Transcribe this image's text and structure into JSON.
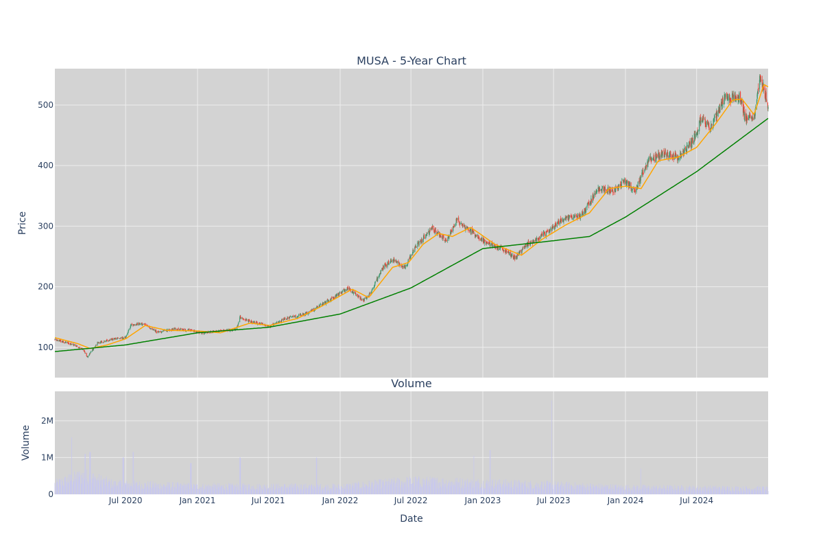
{
  "colors": {
    "plot_bg": "#d3d3d3",
    "grid": "#eeeeee",
    "increasing": "#3d9970",
    "decreasing": "#ef4136",
    "ma_short": "#ffa500",
    "ma_long": "#008000",
    "volume": "#c8c8ee",
    "text": "#2a3f5f"
  },
  "chart_data": [
    {
      "type": "candlestick",
      "title": "MUSA - 5-Year Chart",
      "ylabel": "Price",
      "ylim": [
        50,
        560
      ],
      "yticks": [
        100,
        200,
        300,
        400,
        500
      ],
      "grid": true,
      "x_range": [
        "2020-01-02",
        "2024-12-31"
      ],
      "price_anchors": [
        [
          "2020-01-02",
          113
        ],
        [
          "2020-02-20",
          104
        ],
        [
          "2020-03-15",
          96
        ],
        [
          "2020-03-25",
          84
        ],
        [
          "2020-04-20",
          107
        ],
        [
          "2020-06-01",
          114
        ],
        [
          "2020-07-01",
          116
        ],
        [
          "2020-07-15",
          137
        ],
        [
          "2020-08-15",
          139
        ],
        [
          "2020-09-20",
          125
        ],
        [
          "2020-11-01",
          130
        ],
        [
          "2020-12-15",
          128
        ],
        [
          "2021-01-15",
          123
        ],
        [
          "2021-03-01",
          127
        ],
        [
          "2021-04-10",
          129
        ],
        [
          "2021-04-20",
          150
        ],
        [
          "2021-05-15",
          142
        ],
        [
          "2021-06-20",
          138
        ],
        [
          "2021-07-05",
          134
        ],
        [
          "2021-08-15",
          148
        ],
        [
          "2021-10-01",
          154
        ],
        [
          "2021-11-01",
          165
        ],
        [
          "2021-12-15",
          182
        ],
        [
          "2022-01-20",
          198
        ],
        [
          "2022-03-01",
          178
        ],
        [
          "2022-03-20",
          190
        ],
        [
          "2022-04-20",
          232
        ],
        [
          "2022-05-15",
          245
        ],
        [
          "2022-06-15",
          232
        ],
        [
          "2022-07-15",
          268
        ],
        [
          "2022-08-25",
          296
        ],
        [
          "2022-10-01",
          275
        ],
        [
          "2022-10-25",
          310
        ],
        [
          "2022-12-01",
          292
        ],
        [
          "2023-01-10",
          272
        ],
        [
          "2023-02-20",
          262
        ],
        [
          "2023-03-25",
          248
        ],
        [
          "2023-04-25",
          270
        ],
        [
          "2023-06-15",
          290
        ],
        [
          "2023-07-25",
          312
        ],
        [
          "2023-09-10",
          318
        ],
        [
          "2023-10-25",
          362
        ],
        [
          "2023-12-01",
          358
        ],
        [
          "2024-01-01",
          375
        ],
        [
          "2024-01-25",
          358
        ],
        [
          "2024-03-01",
          410
        ],
        [
          "2024-04-15",
          420
        ],
        [
          "2024-05-15",
          412
        ],
        [
          "2024-06-20",
          440
        ],
        [
          "2024-07-15",
          478
        ],
        [
          "2024-08-05",
          460
        ],
        [
          "2024-09-10",
          510
        ],
        [
          "2024-10-20",
          514
        ],
        [
          "2024-11-01",
          480
        ],
        [
          "2024-11-25",
          475
        ],
        [
          "2024-12-10",
          548
        ],
        [
          "2024-12-20",
          525
        ],
        [
          "2024-12-31",
          498
        ]
      ],
      "ma_short_anchors": [
        [
          "2020-01-02",
          116
        ],
        [
          "2020-03-01",
          106
        ],
        [
          "2020-04-01",
          98
        ],
        [
          "2020-05-15",
          104
        ],
        [
          "2020-07-01",
          114
        ],
        [
          "2020-08-20",
          136
        ],
        [
          "2020-10-15",
          128
        ],
        [
          "2021-01-01",
          127
        ],
        [
          "2021-03-01",
          124
        ],
        [
          "2021-05-15",
          140
        ],
        [
          "2021-07-05",
          136
        ],
        [
          "2021-09-15",
          148
        ],
        [
          "2021-11-15",
          168
        ],
        [
          "2022-02-01",
          196
        ],
        [
          "2022-03-15",
          182
        ],
        [
          "2022-05-15",
          232
        ],
        [
          "2022-06-25",
          240
        ],
        [
          "2022-08-01",
          270
        ],
        [
          "2022-09-10",
          288
        ],
        [
          "2022-10-15",
          283
        ],
        [
          "2022-12-01",
          298
        ],
        [
          "2023-02-01",
          270
        ],
        [
          "2023-04-10",
          252
        ],
        [
          "2023-06-01",
          278
        ],
        [
          "2023-08-01",
          302
        ],
        [
          "2023-10-01",
          322
        ],
        [
          "2023-11-20",
          362
        ],
        [
          "2024-01-01",
          366
        ],
        [
          "2024-02-10",
          362
        ],
        [
          "2024-03-25",
          408
        ],
        [
          "2024-05-15",
          414
        ],
        [
          "2024-07-01",
          430
        ],
        [
          "2024-08-20",
          470
        ],
        [
          "2024-10-01",
          508
        ],
        [
          "2024-10-25",
          510
        ],
        [
          "2024-11-25",
          484
        ],
        [
          "2024-12-20",
          534
        ],
        [
          "2024-12-31",
          530
        ]
      ],
      "ma_long_anchors": [
        [
          "2020-01-02",
          93
        ],
        [
          "2020-07-01",
          104
        ],
        [
          "2021-01-01",
          124
        ],
        [
          "2021-07-01",
          133
        ],
        [
          "2022-01-01",
          155
        ],
        [
          "2022-07-01",
          198
        ],
        [
          "2023-01-01",
          263
        ],
        [
          "2023-07-01",
          276
        ],
        [
          "2023-10-01",
          283
        ],
        [
          "2024-01-01",
          315
        ],
        [
          "2024-07-01",
          390
        ],
        [
          "2024-12-31",
          478
        ]
      ]
    },
    {
      "type": "bar",
      "title": "Volume",
      "xlabel": "Date",
      "ylabel": "Volume",
      "ylim": [
        0,
        2800000
      ],
      "ytick_labels": [
        "0",
        "1M",
        "2M"
      ],
      "yticks": [
        0,
        1000000,
        2000000
      ],
      "grid": true,
      "x_range": [
        "2020-01-02",
        "2024-12-31"
      ],
      "x_tick_labels": [
        "Jul 2020",
        "Jan 2021",
        "Jul 2021",
        "Jan 2022",
        "Jul 2022",
        "Jan 2023",
        "Jul 2023",
        "Jan 2024",
        "Jul 2024"
      ],
      "x_tick_dates": [
        "2020-07-01",
        "2021-01-01",
        "2021-07-01",
        "2022-01-01",
        "2022-07-01",
        "2023-01-01",
        "2023-07-01",
        "2024-01-01",
        "2024-07-01"
      ],
      "volume_base_anchors": [
        [
          "2020-01-02",
          300000
        ],
        [
          "2020-03-15",
          550000
        ],
        [
          "2020-06-01",
          300000
        ],
        [
          "2021-01-01",
          230000
        ],
        [
          "2022-01-01",
          220000
        ],
        [
          "2022-07-01",
          380000
        ],
        [
          "2023-01-01",
          330000
        ],
        [
          "2023-07-01",
          270000
        ],
        [
          "2024-01-01",
          200000
        ],
        [
          "2024-12-31",
          170000
        ]
      ],
      "volume_spikes": [
        [
          "2020-02-15",
          1550000
        ],
        [
          "2020-03-20",
          1100000
        ],
        [
          "2020-04-01",
          1150000
        ],
        [
          "2020-06-25",
          1000000
        ],
        [
          "2020-07-20",
          1150000
        ],
        [
          "2020-12-15",
          850000
        ],
        [
          "2021-04-20",
          1000000
        ],
        [
          "2021-11-01",
          1000000
        ],
        [
          "2022-12-10",
          1050000
        ],
        [
          "2023-01-20",
          1200000
        ],
        [
          "2023-06-25",
          2550000
        ],
        [
          "2024-02-10",
          700000
        ]
      ]
    }
  ]
}
